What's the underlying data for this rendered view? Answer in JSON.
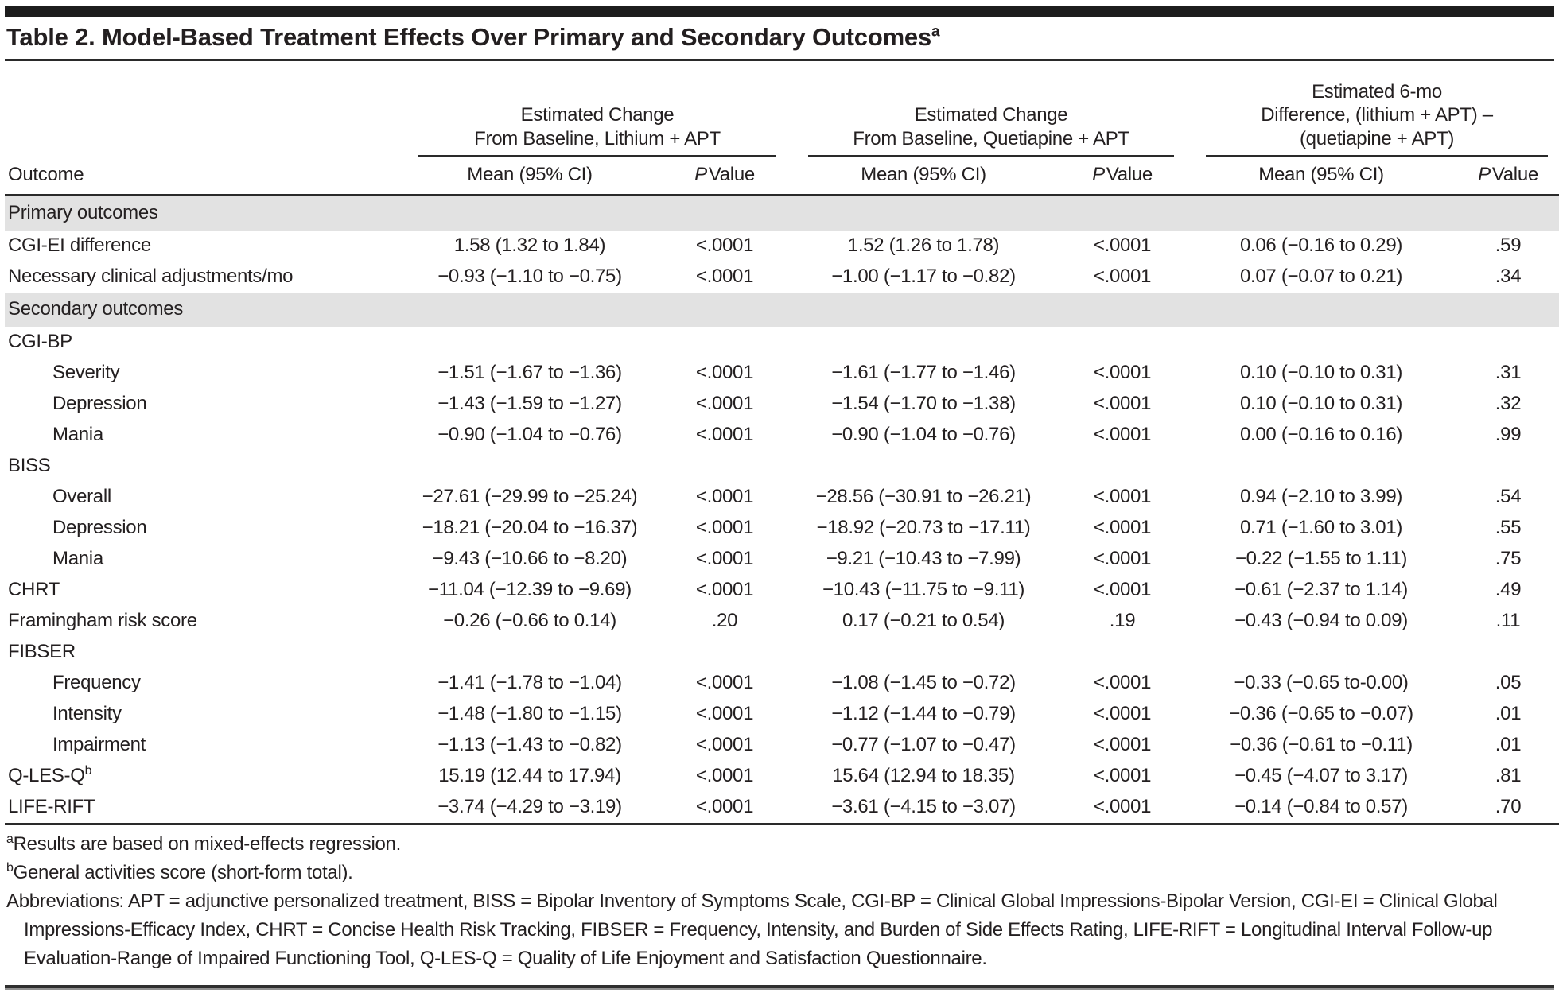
{
  "title": {
    "text": "Table 2. Model-Based Treatment Effects Over Primary and Secondary Outcomes",
    "sup": "a"
  },
  "table": {
    "outcome_header": "Outcome",
    "mean_label": "Mean (95% CI)",
    "p_label_italic": "P",
    "p_label_rest": "Value",
    "groups": [
      {
        "title": "Estimated Change\nFrom Baseline, Lithium + APT"
      },
      {
        "title": "Estimated Change\nFrom Baseline, Quetiapine + APT"
      },
      {
        "title": "Estimated 6-mo\nDifference, (lithium + APT) –\n(quetiapine + APT)"
      }
    ],
    "rows": [
      {
        "type": "section",
        "label": "Primary outcomes"
      },
      {
        "type": "data",
        "label": "CGI-EI difference",
        "indent": 0,
        "cells": [
          "1.58 (1.32 to 1.84)",
          "<.0001",
          "1.52 (1.26 to 1.78)",
          "<.0001",
          "0.06 (−0.16 to 0.29)",
          ".59"
        ]
      },
      {
        "type": "data",
        "label": "Necessary clinical adjustments/mo",
        "indent": 0,
        "cells": [
          "−0.93 (−1.10 to −0.75)",
          "<.0001",
          "−1.00 (−1.17 to −0.82)",
          "<.0001",
          "0.07 (−0.07 to 0.21)",
          ".34"
        ]
      },
      {
        "type": "section",
        "label": "Secondary outcomes"
      },
      {
        "type": "group",
        "label": "CGI-BP"
      },
      {
        "type": "data",
        "label": "Severity",
        "indent": 1,
        "cells": [
          "−1.51 (−1.67 to −1.36)",
          "<.0001",
          "−1.61 (−1.77 to −1.46)",
          "<.0001",
          "0.10 (−0.10 to 0.31)",
          ".31"
        ]
      },
      {
        "type": "data",
        "label": "Depression",
        "indent": 1,
        "cells": [
          "−1.43 (−1.59 to −1.27)",
          "<.0001",
          "−1.54 (−1.70 to −1.38)",
          "<.0001",
          "0.10 (−0.10 to 0.31)",
          ".32"
        ]
      },
      {
        "type": "data",
        "label": "Mania",
        "indent": 1,
        "cells": [
          "−0.90 (−1.04 to −0.76)",
          "<.0001",
          "−0.90 (−1.04 to −0.76)",
          "<.0001",
          "0.00 (−0.16 to 0.16)",
          ".99"
        ]
      },
      {
        "type": "group",
        "label": "BISS"
      },
      {
        "type": "data",
        "label": "Overall",
        "indent": 1,
        "cells": [
          "−27.61 (−29.99 to −25.24)",
          "<.0001",
          "−28.56 (−30.91 to −26.21)",
          "<.0001",
          "0.94 (−2.10 to 3.99)",
          ".54"
        ]
      },
      {
        "type": "data",
        "label": "Depression",
        "indent": 1,
        "cells": [
          "−18.21 (−20.04 to −16.37)",
          "<.0001",
          "−18.92 (−20.73 to −17.11)",
          "<.0001",
          "0.71 (−1.60 to 3.01)",
          ".55"
        ]
      },
      {
        "type": "data",
        "label": "Mania",
        "indent": 1,
        "cells": [
          "−9.43 (−10.66 to −8.20)",
          "<.0001",
          "−9.21 (−10.43 to −7.99)",
          "<.0001",
          "−0.22 (−1.55 to 1.11)",
          ".75"
        ]
      },
      {
        "type": "data",
        "label": "CHRT",
        "indent": 0,
        "cells": [
          "−11.04 (−12.39 to −9.69)",
          "<.0001",
          "−10.43 (−11.75 to −9.11)",
          "<.0001",
          "−0.61 (−2.37 to 1.14)",
          ".49"
        ]
      },
      {
        "type": "data",
        "label": "Framingham risk score",
        "indent": 0,
        "cells": [
          "−0.26 (−0.66 to 0.14)",
          ".20",
          "0.17 (−0.21 to 0.54)",
          ".19",
          "−0.43 (−0.94 to 0.09)",
          ".11"
        ]
      },
      {
        "type": "group",
        "label": "FIBSER"
      },
      {
        "type": "data",
        "label": "Frequency",
        "indent": 1,
        "cells": [
          "−1.41 (−1.78 to −1.04)",
          "<.0001",
          "−1.08 (−1.45 to −0.72)",
          "<.0001",
          "−0.33 (−0.65 to-0.00)",
          ".05"
        ]
      },
      {
        "type": "data",
        "label": "Intensity",
        "indent": 1,
        "cells": [
          "−1.48 (−1.80 to −1.15)",
          "<.0001",
          "−1.12 (−1.44 to −0.79)",
          "<.0001",
          "−0.36 (−0.65 to −0.07)",
          ".01"
        ]
      },
      {
        "type": "data",
        "label": "Impairment",
        "indent": 1,
        "cells": [
          "−1.13 (−1.43 to −0.82)",
          "<.0001",
          "−0.77 (−1.07 to −0.47)",
          "<.0001",
          "−0.36 (−0.61 to −0.11)",
          ".01"
        ]
      },
      {
        "type": "data",
        "label": "Q-LES-Q",
        "sup": "b",
        "indent": 0,
        "cells": [
          "15.19 (12.44 to 17.94)",
          "<.0001",
          "15.64 (12.94 to 18.35)",
          "<.0001",
          "−0.45 (−4.07 to 3.17)",
          ".81"
        ]
      },
      {
        "type": "data",
        "label": "LIFE-RIFT",
        "indent": 0,
        "cells": [
          "−3.74 (−4.29 to −3.19)",
          "<.0001",
          "−3.61 (−4.15 to −3.07)",
          "<.0001",
          "−0.14 (−0.84 to 0.57)",
          ".70"
        ]
      }
    ]
  },
  "footnotes": [
    {
      "sup": "a",
      "text": "Results are based on mixed-effects regression."
    },
    {
      "sup": "b",
      "text": "General activities score (short-form total)."
    }
  ],
  "abbreviations": "Abbreviations: APT = adjunctive personalized treatment, BISS = Bipolar Inventory of Symptoms Scale, CGI-BP = Clinical Global Impressions-Bipolar Version, CGI-EI = Clinical Global Impressions-Efficacy Index, CHRT = Concise Health Risk Tracking, FIBSER = Frequency, Intensity, and Burden of Side Effects Rating, LIFE-RIFT = Longitudinal Interval Follow-up Evaluation-Range of Impaired Functioning Tool,  Q-LES-Q = Quality of Life Enjoyment and Satisfaction Questionnaire."
}
